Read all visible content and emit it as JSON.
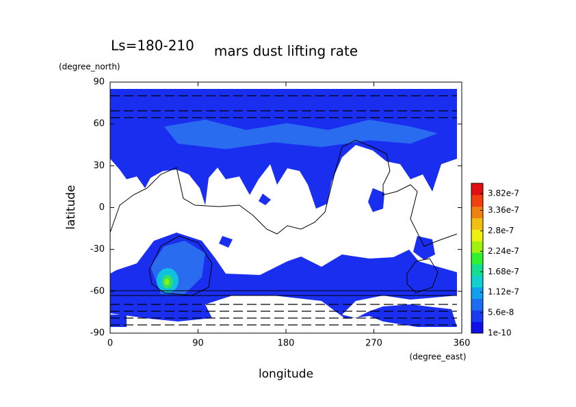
{
  "chart_data": {
    "type": "contour",
    "title": "mars dust lifting rate",
    "subtitle": "Ls=180-210",
    "y_label": "latitude",
    "y_unit": "(degree_north)",
    "x_label": "longitude",
    "x_unit": "(degree_east)",
    "xlim": [
      0,
      360
    ],
    "xticks": [
      0,
      90,
      180,
      270,
      360
    ],
    "ylim": [
      -90,
      90
    ],
    "yticks": [
      90,
      60,
      30,
      0,
      -30,
      -60,
      -90
    ],
    "colorbar": {
      "lim": [
        0,
        4.1e-07
      ],
      "ticks": [
        {
          "value": 3.82e-07,
          "label": "3.82e-7"
        },
        {
          "value": 3.36e-07,
          "label": "3.36e-7"
        },
        {
          "value": 2.8e-07,
          "label": "2.8e-7"
        },
        {
          "value": 2.24e-07,
          "label": "2.24e-7"
        },
        {
          "value": 1.68e-07,
          "label": "1.68e-7"
        },
        {
          "value": 1.12e-07,
          "label": "1.12e-7"
        },
        {
          "value": 5.6e-08,
          "label": "5.6e-8"
        },
        {
          "value": 1e-10,
          "label": "1e-10"
        }
      ],
      "colors": [
        "#1010e8",
        "#1a3cf0",
        "#1e6cf0",
        "#10a0f0",
        "#10d0d0",
        "#10e090",
        "#30f030",
        "#a0f010",
        "#f0f010",
        "#f0c010",
        "#f08010",
        "#f04010",
        "#e01010"
      ]
    }
  }
}
